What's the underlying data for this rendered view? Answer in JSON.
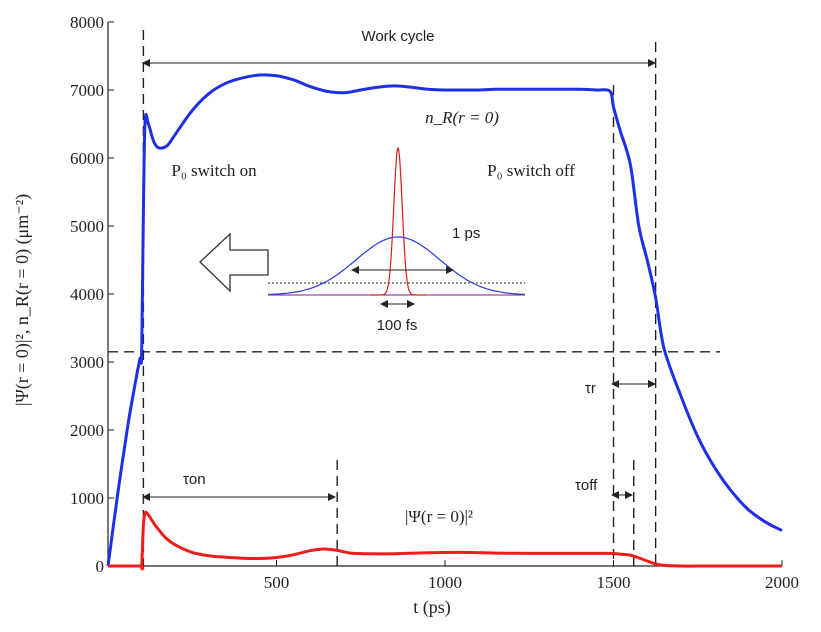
{
  "chart_data": {
    "type": "line",
    "title": "",
    "xlabel": "t (ps)",
    "ylabel": "|Ψ(r = 0)|², n_R(r = 0) (μm⁻²)",
    "xlim": [
      0,
      2000
    ],
    "ylim": [
      0,
      8000
    ],
    "x_ticks": [
      500,
      1000,
      1500,
      2000
    ],
    "y_ticks": [
      0,
      1000,
      2000,
      3000,
      4000,
      5000,
      6000,
      7000,
      8000
    ],
    "x_tick_labels": [
      "500",
      "1000",
      "1500",
      "2000"
    ],
    "y_tick_labels": [
      "0",
      "1000",
      "2000",
      "3000",
      "4000",
      "5000",
      "6000",
      "7000",
      "8000"
    ],
    "grid": false,
    "series": [
      {
        "name": "n_R(r = 0)",
        "color": "#1f2fe6",
        "x": [
          0,
          30,
          60,
          85,
          95,
          100,
          105,
          110,
          120,
          135,
          150,
          175,
          200,
          250,
          300,
          350,
          400,
          450,
          500,
          550,
          600,
          650,
          700,
          750,
          800,
          850,
          900,
          950,
          1000,
          1050,
          1100,
          1150,
          1200,
          1250,
          1300,
          1350,
          1400,
          1450,
          1490,
          1500,
          1520,
          1550,
          1575,
          1600,
          1625,
          1650,
          1700,
          1750,
          1800,
          1850,
          1900,
          1950,
          2000
        ],
        "y": [
          0,
          1100,
          2100,
          2800,
          3050,
          3150,
          5200,
          6550,
          6500,
          6250,
          6150,
          6180,
          6350,
          6700,
          6950,
          7100,
          7180,
          7220,
          7210,
          7150,
          7050,
          6980,
          6960,
          7000,
          7040,
          7060,
          7040,
          7010,
          7000,
          7000,
          7000,
          7010,
          7010,
          7010,
          7010,
          7010,
          7010,
          7000,
          6980,
          6750,
          6400,
          5900,
          5000,
          4500,
          3950,
          3200,
          2500,
          1900,
          1450,
          1100,
          830,
          650,
          520
        ]
      },
      {
        "name": "|Ψ(r = 0)|²",
        "color": "#ee1c1c",
        "x": [
          0,
          95,
          100,
          105,
          110,
          120,
          140,
          170,
          200,
          250,
          300,
          350,
          400,
          450,
          500,
          550,
          600,
          640,
          680,
          720,
          780,
          850,
          950,
          1050,
          1150,
          1250,
          1350,
          1450,
          1490,
          1520,
          1550,
          1580,
          1610,
          1640,
          1700,
          1800,
          2000
        ],
        "y": [
          0,
          0,
          0,
          600,
          780,
          750,
          600,
          420,
          310,
          200,
          150,
          130,
          115,
          110,
          125,
          165,
          225,
          250,
          230,
          190,
          180,
          180,
          195,
          200,
          190,
          185,
          185,
          185,
          185,
          175,
          160,
          110,
          55,
          15,
          0,
          0,
          0
        ]
      }
    ],
    "reference_lines": {
      "horizontal_dashed": {
        "y": 3150
      },
      "vertical_dashed_x": [
        105,
        680,
        1500,
        1560,
        1625
      ]
    },
    "annotations": {
      "work_cycle": "Work cycle",
      "n_r_label": "n_R(r = 0)",
      "psi_label": "|Ψ(r = 0)|²",
      "p0_on": "P₀ switch on",
      "p0_off": "P₀ switch off",
      "tau_on": "τon",
      "tau_off": "τoff",
      "tau_r": "τr",
      "inset_1ps": "1 ps",
      "inset_100fs": "100 fs"
    }
  }
}
